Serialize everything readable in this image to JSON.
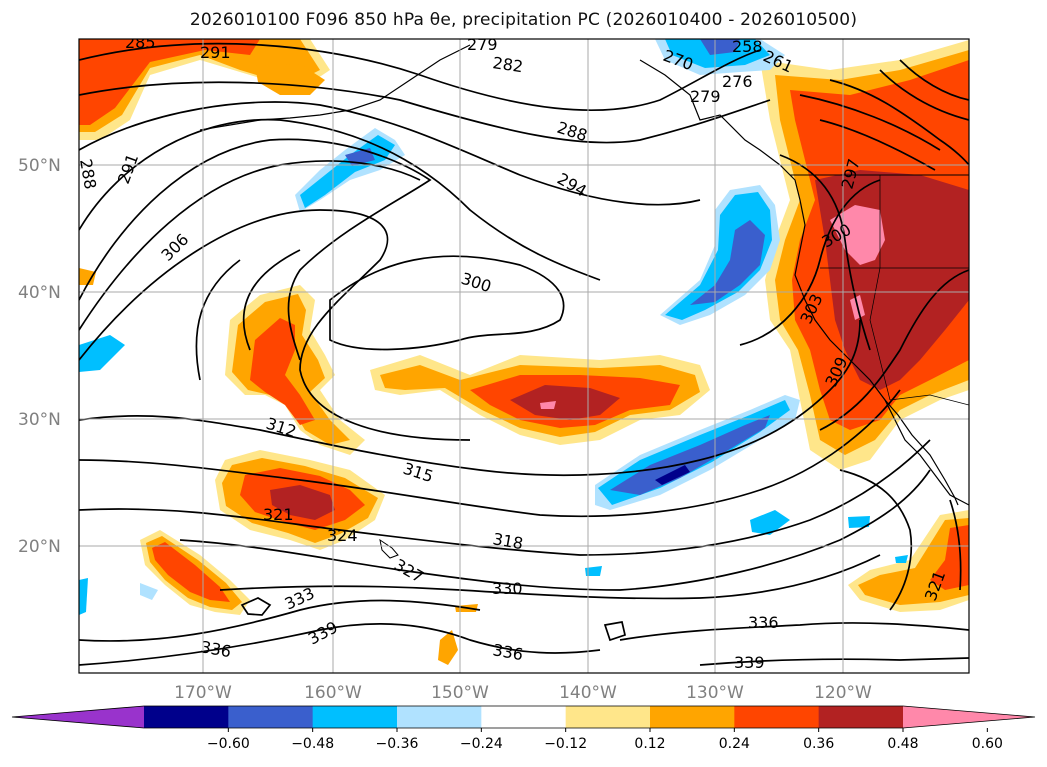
{
  "title": "2026010100 F096 850 hPa θe, precipitation PC (2026010400 - 2026010500)",
  "latitude_labels": [
    "50°N",
    "40°N",
    "30°N",
    "20°N"
  ],
  "longitude_labels": [
    "170°W",
    "160°W",
    "150°W",
    "140°W",
    "130°W",
    "120°W"
  ],
  "contour_labels": [
    {
      "text": "285"
    },
    {
      "text": "291"
    },
    {
      "text": "279"
    },
    {
      "text": "282"
    },
    {
      "text": "288"
    },
    {
      "text": "294"
    },
    {
      "text": "300"
    },
    {
      "text": "306"
    },
    {
      "text": "312"
    },
    {
      "text": "315"
    },
    {
      "text": "318"
    },
    {
      "text": "321"
    },
    {
      "text": "324"
    },
    {
      "text": "327"
    },
    {
      "text": "330"
    },
    {
      "text": "333"
    },
    {
      "text": "336"
    },
    {
      "text": "339"
    },
    {
      "text": "336"
    },
    {
      "text": "339"
    },
    {
      "text": "336"
    },
    {
      "text": "288"
    },
    {
      "text": "291"
    },
    {
      "text": "276"
    },
    {
      "text": "279"
    },
    {
      "text": "270"
    },
    {
      "text": "258"
    },
    {
      "text": "261"
    },
    {
      "text": "297"
    },
    {
      "text": "300"
    },
    {
      "text": "303"
    },
    {
      "text": "309"
    },
    {
      "text": "321"
    }
  ],
  "colorbar": {
    "ticks": [
      "−0.60",
      "−0.48",
      "−0.36",
      "−0.24",
      "−0.12",
      "0.12",
      "0.24",
      "0.36",
      "0.48",
      "0.60"
    ],
    "colors": [
      "#9933cc",
      "#00008b",
      "#3a5fcd",
      "#00bfff",
      "#b0e2ff",
      "#ffffff",
      "#ffe68a",
      "#ffa500",
      "#ff4500",
      "#b22222",
      "#ff88aa"
    ],
    "extend": "both"
  },
  "colors": {
    "map_background": "#ffffff",
    "contour": "#000000",
    "grid": "#aaaaaa",
    "tick_label": "#808080"
  }
}
